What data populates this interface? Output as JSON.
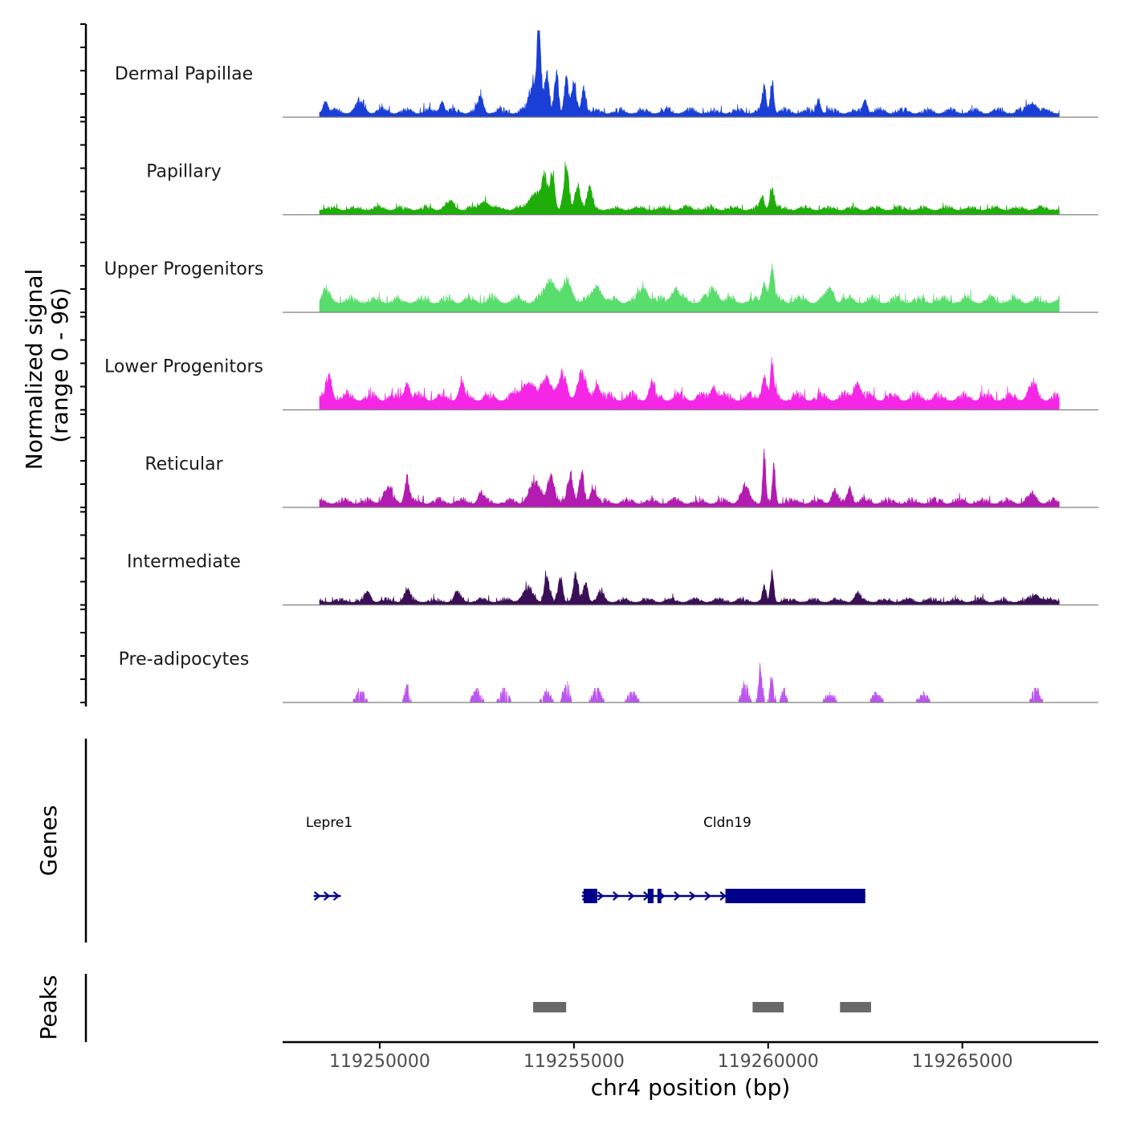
{
  "chart_data": {
    "type": "area",
    "title": "",
    "xlabel": "chr4 position (bp)",
    "ylabel": "Normalized signal",
    "ylabel_range": "(range 0 - 96)",
    "ylim": [
      0,
      96
    ],
    "xlim": [
      119247500,
      119268500
    ],
    "x_ticks": [
      119250000,
      119255000,
      119260000,
      119265000
    ],
    "x_tick_labels": [
      "119250000",
      "119255000",
      "119260000",
      "119265000"
    ],
    "signal_start": 119248450,
    "signal_end": 119267500,
    "series": [
      {
        "name": "Dermal Papillae",
        "color": "#1a3fd6",
        "base": 4,
        "noise": 4,
        "peaks": [
          [
            119248600,
            14,
            80
          ],
          [
            119249500,
            10,
            150
          ],
          [
            119251600,
            14,
            80
          ],
          [
            119252600,
            18,
            90
          ],
          [
            119254000,
            35,
            180
          ],
          [
            119254100,
            96,
            60
          ],
          [
            119254300,
            42,
            80
          ],
          [
            119254550,
            48,
            70
          ],
          [
            119254800,
            40,
            70
          ],
          [
            119255000,
            30,
            90
          ],
          [
            119255250,
            28,
            80
          ],
          [
            119259900,
            28,
            70
          ],
          [
            119260100,
            38,
            60
          ],
          [
            119261300,
            16,
            70
          ],
          [
            119262500,
            14,
            80
          ],
          [
            119266800,
            12,
            150
          ]
        ]
      },
      {
        "name": "Papillary",
        "color": "#1fad0a",
        "base": 5,
        "noise": 3,
        "peaks": [
          [
            119251800,
            8,
            150
          ],
          [
            119252700,
            10,
            150
          ],
          [
            119254000,
            20,
            200
          ],
          [
            119254250,
            36,
            100
          ],
          [
            119254450,
            44,
            80
          ],
          [
            119254800,
            50,
            90
          ],
          [
            119255100,
            30,
            90
          ],
          [
            119255400,
            22,
            100
          ],
          [
            119260100,
            24,
            80
          ],
          [
            119259850,
            14,
            70
          ]
        ]
      },
      {
        "name": "Upper Progenitors",
        "color": "#59dd6c",
        "base": 10,
        "noise": 5,
        "peaks": [
          [
            119248600,
            14,
            100
          ],
          [
            119254400,
            26,
            200
          ],
          [
            119254850,
            22,
            150
          ],
          [
            119255600,
            18,
            150
          ],
          [
            119256800,
            16,
            150
          ],
          [
            119257600,
            14,
            150
          ],
          [
            119258600,
            16,
            150
          ],
          [
            119260100,
            38,
            80
          ],
          [
            119259900,
            22,
            80
          ],
          [
            119261600,
            16,
            120
          ]
        ]
      },
      {
        "name": "Lower Progenitors",
        "color": "#f526e6",
        "base": 10,
        "noise": 6,
        "peaks": [
          [
            119248700,
            26,
            100
          ],
          [
            119250700,
            20,
            100
          ],
          [
            119252100,
            16,
            100
          ],
          [
            119253800,
            20,
            200
          ],
          [
            119254300,
            26,
            150
          ],
          [
            119254700,
            28,
            150
          ],
          [
            119255200,
            28,
            150
          ],
          [
            119255600,
            18,
            100
          ],
          [
            119257000,
            16,
            100
          ],
          [
            119258600,
            16,
            100
          ],
          [
            119259900,
            26,
            90
          ],
          [
            119260100,
            38,
            60
          ],
          [
            119262300,
            20,
            120
          ],
          [
            119266800,
            14,
            150
          ]
        ]
      },
      {
        "name": "Reticular",
        "color": "#b31cb0",
        "base": 4,
        "noise": 4,
        "peaks": [
          [
            119250200,
            16,
            150
          ],
          [
            119250700,
            30,
            80
          ],
          [
            119252600,
            10,
            100
          ],
          [
            119254000,
            22,
            200
          ],
          [
            119254400,
            30,
            120
          ],
          [
            119254900,
            34,
            100
          ],
          [
            119255200,
            34,
            80
          ],
          [
            119255500,
            18,
            100
          ],
          [
            119259400,
            16,
            150
          ],
          [
            119259900,
            60,
            50
          ],
          [
            119260150,
            42,
            50
          ],
          [
            119261700,
            14,
            100
          ],
          [
            119262100,
            18,
            80
          ],
          [
            119266800,
            8,
            150
          ]
        ]
      },
      {
        "name": "Intermediate",
        "color": "#3b0f56",
        "base": 3,
        "noise": 3,
        "peaks": [
          [
            119249700,
            10,
            100
          ],
          [
            119250700,
            14,
            100
          ],
          [
            119252000,
            10,
            100
          ],
          [
            119253800,
            14,
            180
          ],
          [
            119254300,
            32,
            80
          ],
          [
            119254650,
            28,
            80
          ],
          [
            119255050,
            30,
            80
          ],
          [
            119255300,
            22,
            80
          ],
          [
            119255700,
            10,
            100
          ],
          [
            119260100,
            32,
            60
          ],
          [
            119259900,
            16,
            60
          ],
          [
            119262300,
            8,
            100
          ],
          [
            119266900,
            8,
            150
          ]
        ]
      },
      {
        "name": "Pre-adipocytes",
        "color": "#bb55ee",
        "base": 0,
        "noise": 0,
        "sparse": true,
        "peaks": [
          [
            119249500,
            14,
            150
          ],
          [
            119250700,
            20,
            80
          ],
          [
            119252500,
            16,
            150
          ],
          [
            119253200,
            16,
            150
          ],
          [
            119254300,
            14,
            150
          ],
          [
            119254800,
            28,
            100
          ],
          [
            119255600,
            18,
            150
          ],
          [
            119256500,
            14,
            150
          ],
          [
            119259400,
            24,
            120
          ],
          [
            119259800,
            44,
            70
          ],
          [
            119260100,
            30,
            80
          ],
          [
            119260400,
            18,
            80
          ],
          [
            119261600,
            12,
            150
          ],
          [
            119262800,
            12,
            150
          ],
          [
            119264000,
            12,
            150
          ],
          [
            119266900,
            20,
            120
          ]
        ]
      }
    ]
  },
  "genes": {
    "title": "Genes",
    "items": [
      {
        "name": "Lepre1",
        "start": 119248300,
        "end": 119249000,
        "strand": "+",
        "color": "#00008b",
        "exons": [],
        "label_x": 119248700
      },
      {
        "name": "Cldn19",
        "start": 119255200,
        "end": 119262500,
        "strand": "+",
        "color": "#00008b",
        "exons": [
          [
            119255250,
            119255600
          ],
          [
            119256900,
            119257050
          ],
          [
            119257150,
            119257250
          ],
          [
            119258900,
            119262500
          ]
        ],
        "label_x": 119258950
      }
    ]
  },
  "peaks": {
    "title": "Peaks",
    "color": "#696969",
    "regions": [
      [
        119253950,
        119254800
      ],
      [
        119259600,
        119260400
      ],
      [
        119261850,
        119262650
      ]
    ]
  }
}
